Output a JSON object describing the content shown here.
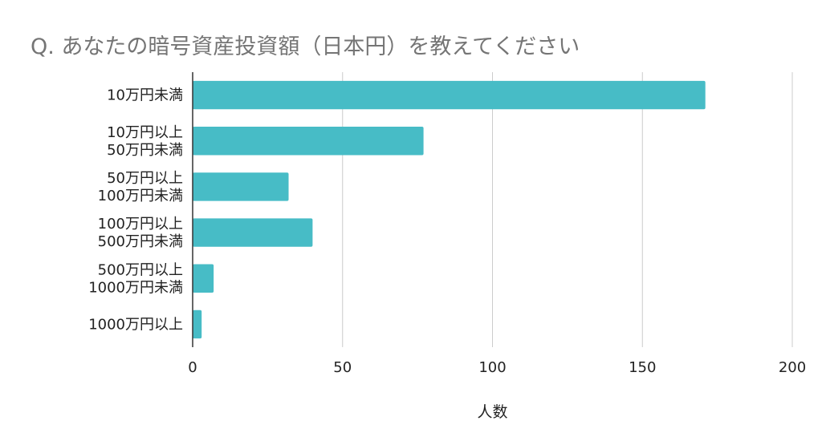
{
  "chart_data": {
    "type": "bar",
    "orientation": "horizontal",
    "title": "Q. あなたの暗号資産投資額（日本円）を教えてください",
    "xlabel": "人数",
    "ylabel": "",
    "categories": [
      [
        "10万円未満"
      ],
      [
        "10万円以上",
        "50万円未満"
      ],
      [
        "50万円以上",
        "100万円未満"
      ],
      [
        "100万円以上",
        "500万円未満"
      ],
      [
        "500万円以上",
        "1000万円未満"
      ],
      [
        "1000万円以上"
      ]
    ],
    "values": [
      171,
      77,
      32,
      40,
      7,
      3
    ],
    "xlim": [
      0,
      200
    ],
    "xticks": [
      "0",
      "50",
      "100",
      "150",
      "200"
    ],
    "xtick_values": [
      0,
      50,
      100,
      150,
      200
    ],
    "grid": true,
    "bar_color": "#47bcc6"
  }
}
